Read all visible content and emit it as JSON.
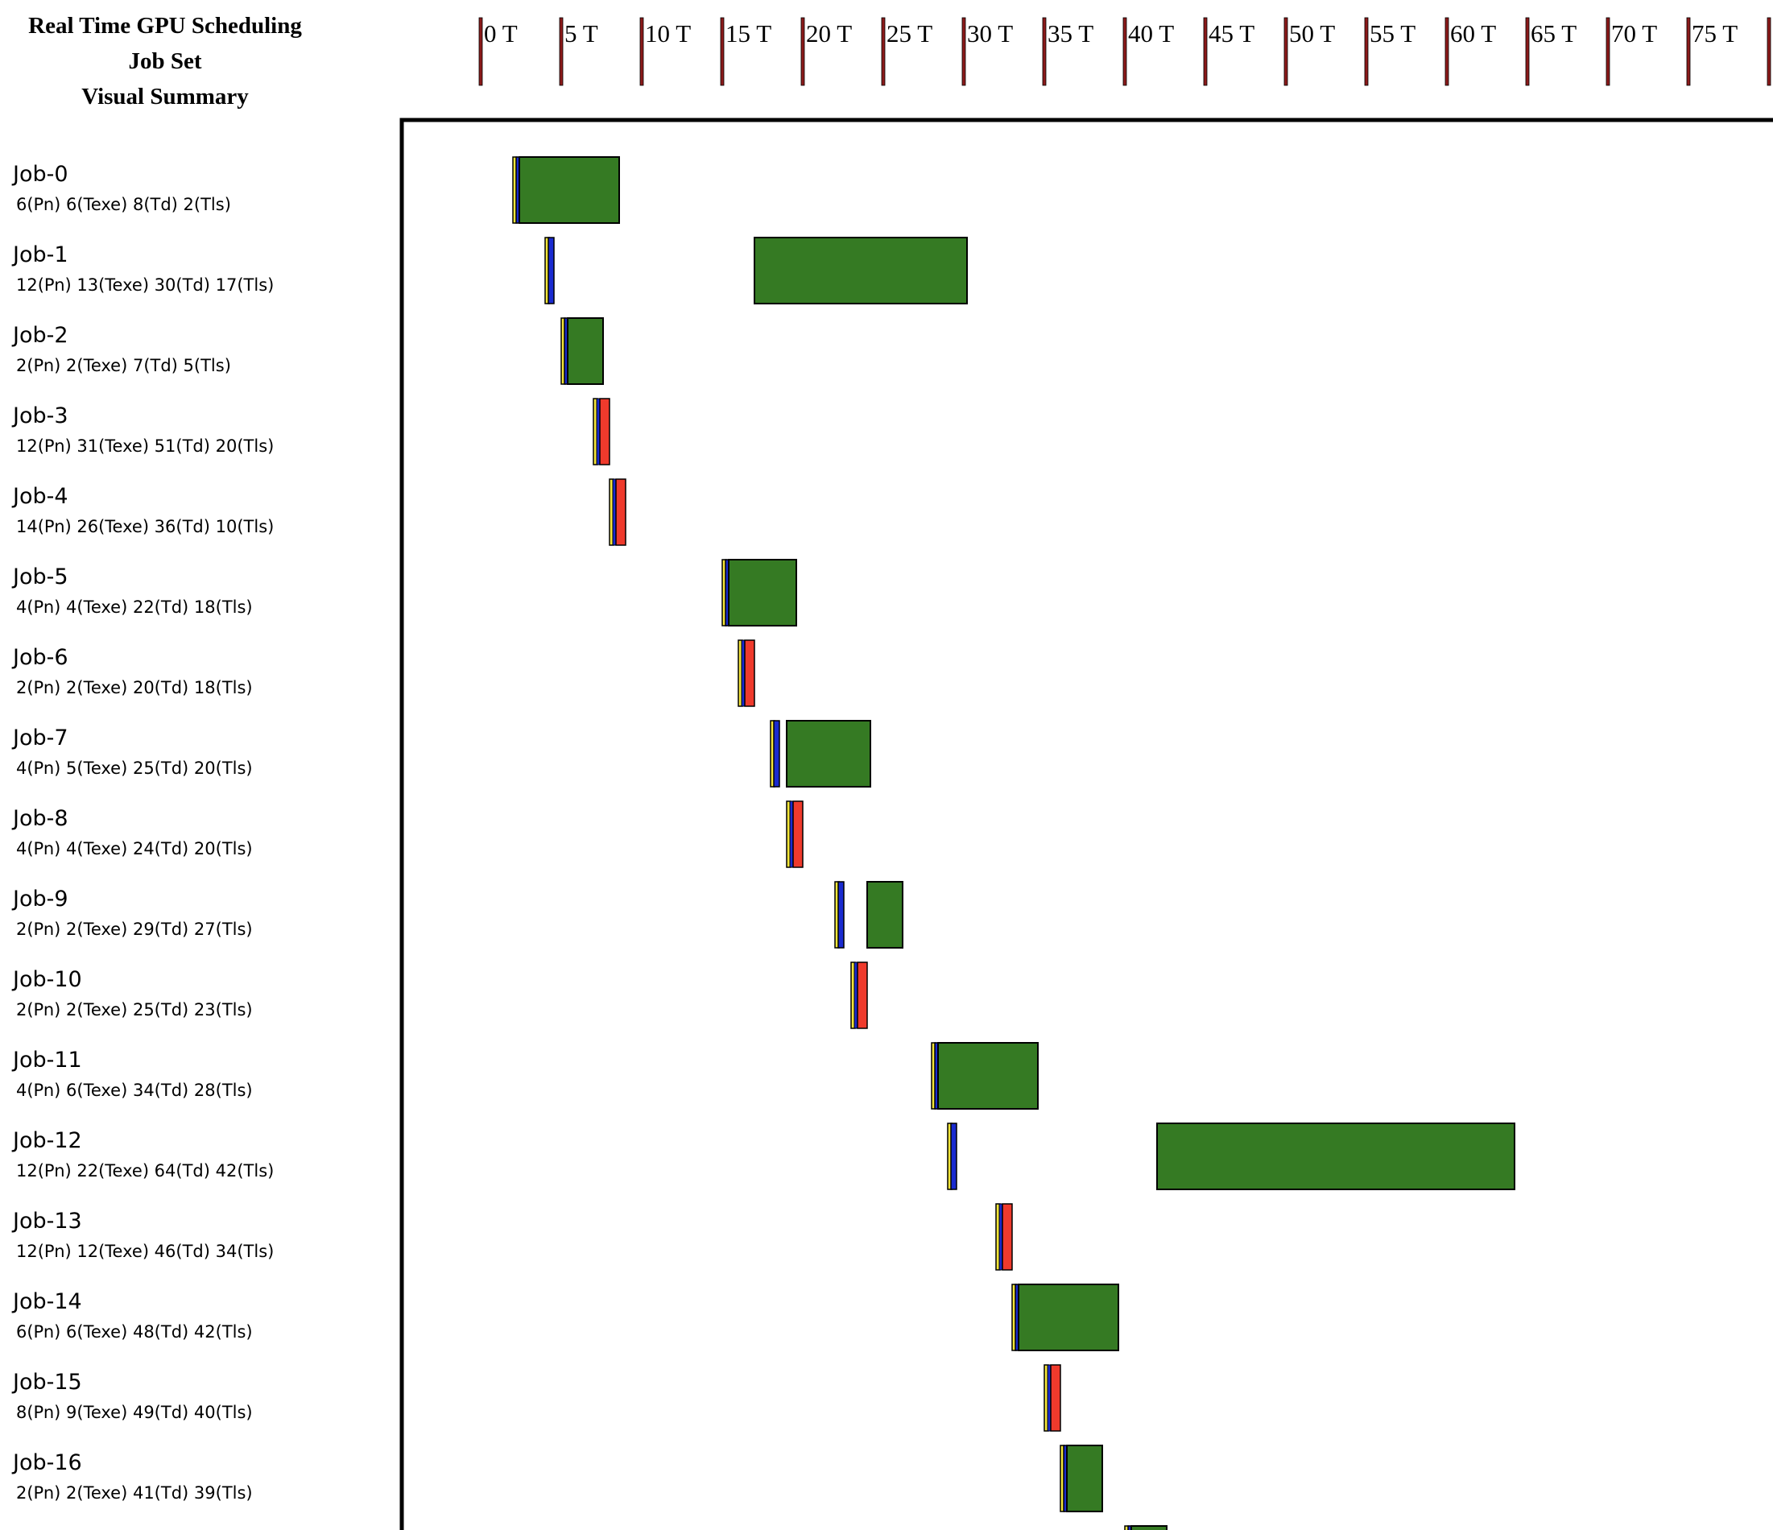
{
  "title": {
    "line1": "Real Time GPU Scheduling",
    "line2": "Job Set",
    "line3": "Visual Summary"
  },
  "colors": {
    "execute": "#357a23",
    "release": "#1a2bd0",
    "miss": "#ef3a2c",
    "marker": "#f5e63a",
    "tick": "#8b1a1a",
    "border": "#000000"
  },
  "chart_data": {
    "type": "gantt",
    "x_unit": "T",
    "xlim": [
      0,
      80
    ],
    "x_ticks": [
      {
        "value": 0,
        "label": "0 T"
      },
      {
        "value": 5,
        "label": "5 T"
      },
      {
        "value": 10,
        "label": "10 T"
      },
      {
        "value": 15,
        "label": "15 T"
      },
      {
        "value": 20,
        "label": "20 T"
      },
      {
        "value": 25,
        "label": "25 T"
      },
      {
        "value": 30,
        "label": "30 T"
      },
      {
        "value": 35,
        "label": "35 T"
      },
      {
        "value": 40,
        "label": "40 T"
      },
      {
        "value": 45,
        "label": "45 T"
      },
      {
        "value": 50,
        "label": "50 T"
      },
      {
        "value": 55,
        "label": "55 T"
      },
      {
        "value": 60,
        "label": "60 T"
      },
      {
        "value": 65,
        "label": "65 T"
      },
      {
        "value": 70,
        "label": "70 T"
      },
      {
        "value": 75,
        "label": "75 T"
      },
      {
        "value": 80,
        "label": ""
      }
    ],
    "jobs": [
      {
        "name": "Job-0",
        "params": "6(Pn) 6(Texe) 8(Td) 2(Tls)",
        "release": 2,
        "kind": "blue",
        "exec": [
          2.4,
          8.6
        ]
      },
      {
        "name": "Job-1",
        "params": "12(Pn) 13(Texe) 30(Td) 17(Tls)",
        "release": 4,
        "kind": "blue",
        "exec": [
          17,
          30.2
        ]
      },
      {
        "name": "Job-2",
        "params": "2(Pn) 2(Texe) 7(Td) 5(Tls)",
        "release": 5,
        "kind": "blue",
        "exec": [
          5.4,
          7.6
        ]
      },
      {
        "name": "Job-3",
        "params": "12(Pn) 31(Texe) 51(Td) 20(Tls)",
        "release": 7,
        "kind": "red",
        "exec": null
      },
      {
        "name": "Job-4",
        "params": "14(Pn) 26(Texe) 36(Td) 10(Tls)",
        "release": 8,
        "kind": "red",
        "exec": null
      },
      {
        "name": "Job-5",
        "params": "4(Pn) 4(Texe) 22(Td) 18(Tls)",
        "release": 15,
        "kind": "blue",
        "exec": [
          15.4,
          19.6
        ]
      },
      {
        "name": "Job-6",
        "params": "2(Pn) 2(Texe) 20(Td) 18(Tls)",
        "release": 16,
        "kind": "red",
        "exec": null
      },
      {
        "name": "Job-7",
        "params": "4(Pn) 5(Texe) 25(Td) 20(Tls)",
        "release": 18,
        "kind": "blue",
        "exec": [
          19,
          24.2
        ]
      },
      {
        "name": "Job-8",
        "params": "4(Pn) 4(Texe) 24(Td) 20(Tls)",
        "release": 19,
        "kind": "red",
        "exec": null
      },
      {
        "name": "Job-9",
        "params": "2(Pn) 2(Texe) 29(Td) 27(Tls)",
        "release": 22,
        "kind": "blue",
        "exec": [
          24,
          26.2
        ]
      },
      {
        "name": "Job-10",
        "params": "2(Pn) 2(Texe) 25(Td) 23(Tls)",
        "release": 23,
        "kind": "red",
        "exec": null
      },
      {
        "name": "Job-11",
        "params": "4(Pn) 6(Texe) 34(Td) 28(Tls)",
        "release": 28,
        "kind": "blue",
        "exec": [
          28.4,
          34.6
        ]
      },
      {
        "name": "Job-12",
        "params": "12(Pn) 22(Texe) 64(Td) 42(Tls)",
        "release": 29,
        "kind": "blue",
        "exec": [
          42,
          64.2
        ]
      },
      {
        "name": "Job-13",
        "params": "12(Pn) 12(Texe) 46(Td) 34(Tls)",
        "release": 32,
        "kind": "red",
        "exec": null
      },
      {
        "name": "Job-14",
        "params": "6(Pn) 6(Texe) 48(Td) 42(Tls)",
        "release": 33,
        "kind": "blue",
        "exec": [
          33.4,
          39.6
        ]
      },
      {
        "name": "Job-15",
        "params": "8(Pn) 9(Texe) 49(Td) 40(Tls)",
        "release": 35,
        "kind": "red",
        "exec": null
      },
      {
        "name": "Job-16",
        "params": "2(Pn) 2(Texe) 41(Td) 39(Tls)",
        "release": 36,
        "kind": "blue",
        "exec": [
          36.4,
          38.6
        ]
      },
      {
        "name": "",
        "params": "",
        "release": 40,
        "kind": "blue",
        "exec": [
          40.4,
          42.6
        ]
      }
    ]
  }
}
